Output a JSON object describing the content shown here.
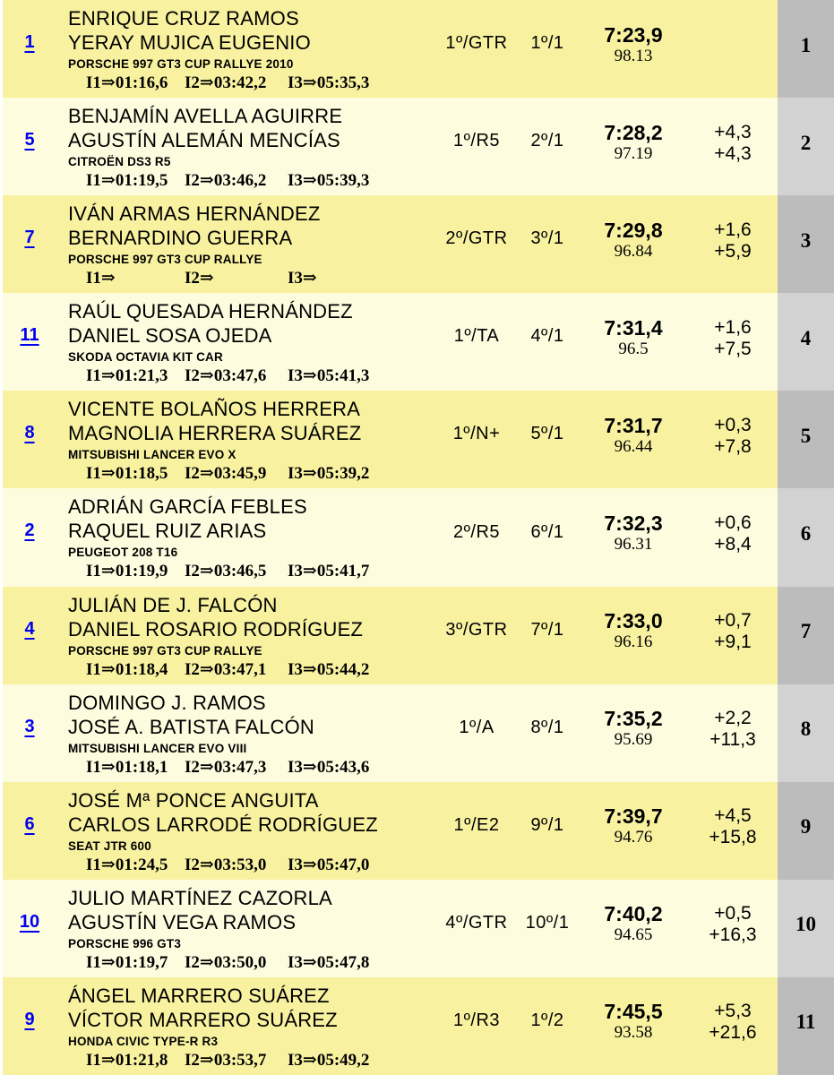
{
  "colors": {
    "row_odd_bg": "#f8f2a0",
    "row_even_bg": "#fdfcdf",
    "pos_odd_bg": "#bcbcbc",
    "pos_even_bg": "#d2d2d2",
    "link_blue": "#0000ee",
    "text": "#000000"
  },
  "rows": [
    {
      "car_number": "1",
      "driver1": "ENRIQUE CRUZ RAMOS",
      "driver2": "YERAY MUJICA EUGENIO",
      "car": "PORSCHE 997 GT3 CUP RALLYE 2010",
      "intermediates": [
        "I1⇒01:16,6",
        "I2⇒03:42,2",
        "I3⇒05:35,3"
      ],
      "class_position": "1º/GTR",
      "group_position": "1º/1",
      "time": "7:23,9",
      "speed": "98.13",
      "gap_prev": "",
      "gap_leader": "",
      "position": "1"
    },
    {
      "car_number": "5",
      "driver1": "BENJAMÍN AVELLA AGUIRRE",
      "driver2": "AGUSTÍN ALEMÁN MENCÍAS",
      "car": "CITROËN DS3 R5",
      "intermediates": [
        "I1⇒01:19,5",
        "I2⇒03:46,2",
        "I3⇒05:39,3"
      ],
      "class_position": "1º/R5",
      "group_position": "2º/1",
      "time": "7:28,2",
      "speed": "97.19",
      "gap_prev": "+4,3",
      "gap_leader": "+4,3",
      "position": "2"
    },
    {
      "car_number": "7",
      "driver1": "IVÁN ARMAS HERNÁNDEZ",
      "driver2": "BERNARDINO GUERRA",
      "car": "PORSCHE 997 GT3 CUP RALLYE",
      "intermediates": [
        "I1⇒",
        "I2⇒",
        "I3⇒"
      ],
      "class_position": "2º/GTR",
      "group_position": "3º/1",
      "time": "7:29,8",
      "speed": "96.84",
      "gap_prev": "+1,6",
      "gap_leader": "+5,9",
      "position": "3"
    },
    {
      "car_number": "11",
      "driver1": "RAÚL QUESADA HERNÁNDEZ",
      "driver2": "DANIEL SOSA OJEDA",
      "car": "SKODA OCTAVIA KIT CAR",
      "intermediates": [
        "I1⇒01:21,3",
        "I2⇒03:47,6",
        "I3⇒05:41,3"
      ],
      "class_position": "1º/TA",
      "group_position": "4º/1",
      "time": "7:31,4",
      "speed": "96.5",
      "gap_prev": "+1,6",
      "gap_leader": "+7,5",
      "position": "4"
    },
    {
      "car_number": "8",
      "driver1": "VICENTE BOLAÑOS HERRERA",
      "driver2": "MAGNOLIA HERRERA SUÁREZ",
      "car": "MITSUBISHI LANCER EVO X",
      "intermediates": [
        "I1⇒01:18,5",
        "I2⇒03:45,9",
        "I3⇒05:39,2"
      ],
      "class_position": "1º/N+",
      "group_position": "5º/1",
      "time": "7:31,7",
      "speed": "96.44",
      "gap_prev": "+0,3",
      "gap_leader": "+7,8",
      "position": "5"
    },
    {
      "car_number": "2",
      "driver1": "ADRIÁN GARCÍA FEBLES",
      "driver2": "RAQUEL RUIZ ARIAS",
      "car": "PEUGEOT 208 T16",
      "intermediates": [
        "I1⇒01:19,9",
        "I2⇒03:46,5",
        "I3⇒05:41,7"
      ],
      "class_position": "2º/R5",
      "group_position": "6º/1",
      "time": "7:32,3",
      "speed": "96.31",
      "gap_prev": "+0,6",
      "gap_leader": "+8,4",
      "position": "6"
    },
    {
      "car_number": "4",
      "driver1": "JULIÁN DE J. FALCÓN",
      "driver2": "DANIEL ROSARIO RODRÍGUEZ",
      "car": "PORSCHE 997 GT3 CUP RALLYE",
      "intermediates": [
        "I1⇒01:18,4",
        "I2⇒03:47,1",
        "I3⇒05:44,2"
      ],
      "class_position": "3º/GTR",
      "group_position": "7º/1",
      "time": "7:33,0",
      "speed": "96.16",
      "gap_prev": "+0,7",
      "gap_leader": "+9,1",
      "position": "7"
    },
    {
      "car_number": "3",
      "driver1": "DOMINGO J. RAMOS",
      "driver2": "JOSÉ A. BATISTA FALCÓN",
      "car": "MITSUBISHI LANCER EVO VIII",
      "intermediates": [
        "I1⇒01:18,1",
        "I2⇒03:47,3",
        "I3⇒05:43,6"
      ],
      "class_position": "1º/A",
      "group_position": "8º/1",
      "time": "7:35,2",
      "speed": "95.69",
      "gap_prev": "+2,2",
      "gap_leader": "+11,3",
      "position": "8"
    },
    {
      "car_number": "6",
      "driver1": "JOSÉ Mª PONCE ANGUITA",
      "driver2": "CARLOS LARRODÉ RODRÍGUEZ",
      "car": "SEAT JTR 600",
      "intermediates": [
        "I1⇒01:24,5",
        "I2⇒03:53,0",
        "I3⇒05:47,0"
      ],
      "class_position": "1º/E2",
      "group_position": "9º/1",
      "time": "7:39,7",
      "speed": "94.76",
      "gap_prev": "+4,5",
      "gap_leader": "+15,8",
      "position": "9"
    },
    {
      "car_number": "10",
      "driver1": "JULIO MARTÍNEZ CAZORLA",
      "driver2": "AGUSTÍN VEGA RAMOS",
      "car": "PORSCHE 996 GT3",
      "intermediates": [
        "I1⇒01:19,7",
        "I2⇒03:50,0",
        "I3⇒05:47,8"
      ],
      "class_position": "4º/GTR",
      "group_position": "10º/1",
      "time": "7:40,2",
      "speed": "94.65",
      "gap_prev": "+0,5",
      "gap_leader": "+16,3",
      "position": "10"
    },
    {
      "car_number": "9",
      "driver1": "ÁNGEL MARRERO SUÁREZ",
      "driver2": "VÍCTOR MARRERO SUÁREZ",
      "car": "HONDA CIVIC TYPE-R R3",
      "intermediates": [
        "I1⇒01:21,8",
        "I2⇒03:53,7",
        "I3⇒05:49,2"
      ],
      "class_position": "1º/R3",
      "group_position": "1º/2",
      "time": "7:45,5",
      "speed": "93.58",
      "gap_prev": "+5,3",
      "gap_leader": "+21,6",
      "position": "11"
    }
  ]
}
